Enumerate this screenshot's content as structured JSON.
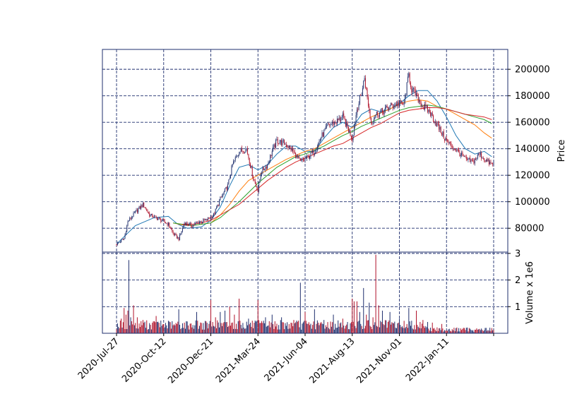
{
  "chart_data": {
    "type": "candlestick",
    "title": "",
    "panels": {
      "price": {
        "ylabel": "Price",
        "ylim": [
          62000,
          215000
        ],
        "ticks": [
          80000,
          100000,
          120000,
          140000,
          160000,
          180000,
          200000
        ],
        "tick_labels": [
          "80000",
          "100000",
          "120000",
          "140000",
          "160000",
          "180000",
          "200000"
        ]
      },
      "volume": {
        "ylabel": "Volume x 1e6",
        "ylim": [
          0,
          3.05
        ],
        "ticks": [
          1,
          2,
          3
        ],
        "tick_labels": [
          "1",
          "2",
          "3"
        ]
      }
    },
    "xlim": [
      -15,
      415
    ],
    "xticks": [
      0,
      50,
      100,
      150,
      200,
      250,
      300,
      350,
      400
    ],
    "xtick_labels": [
      "2020-Jul-27",
      "2020-Oct-12",
      "2020-Dec-21",
      "2021-Mar-24",
      "2021-Jun-04",
      "2021-Aug-13",
      "2021-Nov-01",
      "2022-Jan-11",
      ""
    ],
    "grid": true,
    "grid_style": "dashed",
    "candle_colors": {
      "up": "#1f2f6e",
      "down": "#b0122a"
    },
    "volume_colors": {
      "up": "#1f2f6e",
      "down": "#b0122a"
    },
    "close_series": {
      "start_index": 0,
      "end_index": 400,
      "points": [
        [
          0,
          68000
        ],
        [
          8,
          72000
        ],
        [
          12,
          85000
        ],
        [
          20,
          92000
        ],
        [
          28,
          98000
        ],
        [
          35,
          90000
        ],
        [
          45,
          87000
        ],
        [
          55,
          83000
        ],
        [
          60,
          76000
        ],
        [
          66,
          72000
        ],
        [
          72,
          84000
        ],
        [
          80,
          82000
        ],
        [
          88,
          85000
        ],
        [
          95,
          86000
        ],
        [
          103,
          90000
        ],
        [
          110,
          102000
        ],
        [
          118,
          112000
        ],
        [
          123,
          128000
        ],
        [
          130,
          138000
        ],
        [
          138,
          140000
        ],
        [
          145,
          118000
        ],
        [
          150,
          108000
        ],
        [
          153,
          122000
        ],
        [
          160,
          128000
        ],
        [
          165,
          138000
        ],
        [
          170,
          146000
        ],
        [
          178,
          144000
        ],
        [
          185,
          140000
        ],
        [
          190,
          135000
        ],
        [
          195,
          130000
        ],
        [
          200,
          132000
        ],
        [
          210,
          138000
        ],
        [
          218,
          150000
        ],
        [
          225,
          158000
        ],
        [
          232,
          160000
        ],
        [
          240,
          164000
        ],
        [
          250,
          148000
        ],
        [
          255,
          170000
        ],
        [
          260,
          182000
        ],
        [
          263,
          194000
        ],
        [
          266,
          178000
        ],
        [
          270,
          160000
        ],
        [
          275,
          166000
        ],
        [
          282,
          168000
        ],
        [
          290,
          172000
        ],
        [
          298,
          174000
        ],
        [
          305,
          174000
        ],
        [
          310,
          196000
        ],
        [
          313,
          185000
        ],
        [
          318,
          180000
        ],
        [
          325,
          172000
        ],
        [
          332,
          168000
        ],
        [
          340,
          158000
        ],
        [
          348,
          148000
        ],
        [
          355,
          142000
        ],
        [
          362,
          138000
        ],
        [
          370,
          132000
        ],
        [
          378,
          130000
        ],
        [
          385,
          136000
        ],
        [
          392,
          131000
        ],
        [
          398,
          128000
        ],
        [
          400,
          129000
        ]
      ]
    },
    "moving_averages": [
      {
        "color": "#1f77b4",
        "points": [
          [
            0,
            68000
          ],
          [
            20,
            82000
          ],
          [
            40,
            88000
          ],
          [
            55,
            89000
          ],
          [
            65,
            83000
          ],
          [
            75,
            80000
          ],
          [
            90,
            81000
          ],
          [
            100,
            86000
          ],
          [
            110,
            96000
          ],
          [
            120,
            112000
          ],
          [
            130,
            126000
          ],
          [
            140,
            128000
          ],
          [
            150,
            124000
          ],
          [
            160,
            128000
          ],
          [
            170,
            136000
          ],
          [
            180,
            142000
          ],
          [
            190,
            142000
          ],
          [
            200,
            138000
          ],
          [
            210,
            138000
          ],
          [
            220,
            148000
          ],
          [
            230,
            156000
          ],
          [
            240,
            160000
          ],
          [
            250,
            156000
          ],
          [
            260,
            166000
          ],
          [
            270,
            170000
          ],
          [
            280,
            168000
          ],
          [
            290,
            170000
          ],
          [
            300,
            174000
          ],
          [
            310,
            180000
          ],
          [
            320,
            184000
          ],
          [
            330,
            184000
          ],
          [
            340,
            176000
          ],
          [
            350,
            164000
          ],
          [
            360,
            150000
          ],
          [
            370,
            140000
          ],
          [
            380,
            136000
          ],
          [
            390,
            138000
          ],
          [
            398,
            134000
          ]
        ]
      },
      {
        "color": "#ff7f0e",
        "points": [
          [
            60,
            84000
          ],
          [
            70,
            82500
          ],
          [
            80,
            82000
          ],
          [
            90,
            83000
          ],
          [
            100,
            84000
          ],
          [
            110,
            90000
          ],
          [
            120,
            98000
          ],
          [
            130,
            108000
          ],
          [
            140,
            116000
          ],
          [
            150,
            120000
          ],
          [
            160,
            124000
          ],
          [
            170,
            128000
          ],
          [
            180,
            132000
          ],
          [
            190,
            135000
          ],
          [
            200,
            138000
          ],
          [
            210,
            140000
          ],
          [
            220,
            144000
          ],
          [
            230,
            148000
          ],
          [
            240,
            152000
          ],
          [
            250,
            156000
          ],
          [
            260,
            160000
          ],
          [
            270,
            164000
          ],
          [
            280,
            167000
          ],
          [
            290,
            170000
          ],
          [
            300,
            174000
          ],
          [
            310,
            176000
          ],
          [
            320,
            177000
          ],
          [
            330,
            176000
          ],
          [
            340,
            172000
          ],
          [
            350,
            170000
          ],
          [
            360,
            166000
          ],
          [
            370,
            162000
          ],
          [
            380,
            158000
          ],
          [
            390,
            152000
          ],
          [
            398,
            148000
          ]
        ]
      },
      {
        "color": "#2ca02c",
        "points": [
          [
            60,
            84000
          ],
          [
            70,
            83000
          ],
          [
            80,
            82000
          ],
          [
            90,
            83000
          ],
          [
            100,
            84000
          ],
          [
            110,
            88000
          ],
          [
            120,
            94000
          ],
          [
            130,
            100000
          ],
          [
            140,
            107000
          ],
          [
            150,
            114000
          ],
          [
            160,
            120000
          ],
          [
            170,
            126000
          ],
          [
            180,
            130000
          ],
          [
            190,
            134000
          ],
          [
            200,
            136000
          ],
          [
            210,
            139000
          ],
          [
            220,
            142000
          ],
          [
            230,
            146000
          ],
          [
            240,
            150000
          ],
          [
            250,
            153000
          ],
          [
            260,
            157000
          ],
          [
            270,
            160000
          ],
          [
            280,
            163000
          ],
          [
            290,
            166000
          ],
          [
            300,
            169000
          ],
          [
            310,
            171000
          ],
          [
            320,
            172000
          ],
          [
            330,
            173000
          ],
          [
            340,
            172000
          ],
          [
            350,
            170000
          ],
          [
            360,
            168000
          ],
          [
            370,
            166000
          ],
          [
            380,
            164000
          ],
          [
            390,
            162000
          ],
          [
            398,
            159000
          ]
        ]
      },
      {
        "color": "#d62728",
        "points": [
          [
            70,
            83000
          ],
          [
            80,
            83000
          ],
          [
            90,
            84000
          ],
          [
            100,
            86000
          ],
          [
            110,
            90000
          ],
          [
            120,
            94000
          ],
          [
            130,
            98000
          ],
          [
            140,
            104000
          ],
          [
            150,
            110000
          ],
          [
            160,
            116000
          ],
          [
            170,
            121000
          ],
          [
            180,
            126000
          ],
          [
            190,
            130000
          ],
          [
            200,
            133000
          ],
          [
            210,
            136000
          ],
          [
            220,
            139000
          ],
          [
            230,
            142000
          ],
          [
            240,
            144000
          ],
          [
            250,
            148000
          ],
          [
            260,
            152000
          ],
          [
            270,
            156000
          ],
          [
            280,
            159000
          ],
          [
            290,
            163000
          ],
          [
            300,
            167000
          ],
          [
            310,
            169000
          ],
          [
            320,
            170000
          ],
          [
            330,
            171000
          ],
          [
            340,
            171000
          ],
          [
            350,
            170000
          ],
          [
            360,
            168000
          ],
          [
            370,
            166000
          ],
          [
            380,
            165000
          ],
          [
            390,
            164000
          ],
          [
            398,
            162000
          ]
        ]
      }
    ],
    "volume_series": {
      "base_level_millions": 0.3,
      "spikes": [
        [
          5,
          0.55
        ],
        [
          8,
          0.95
        ],
        [
          10,
          0.7
        ],
        [
          12,
          0.85
        ],
        [
          13,
          2.75
        ],
        [
          15,
          0.6
        ],
        [
          18,
          1.05
        ],
        [
          22,
          0.6
        ],
        [
          28,
          0.5
        ],
        [
          42,
          0.65
        ],
        [
          60,
          0.3
        ],
        [
          66,
          0.9
        ],
        [
          72,
          0.4
        ],
        [
          85,
          0.8
        ],
        [
          95,
          0.45
        ],
        [
          100,
          1.25
        ],
        [
          105,
          0.6
        ],
        [
          110,
          0.8
        ],
        [
          115,
          0.85
        ],
        [
          120,
          1.0
        ],
        [
          125,
          0.7
        ],
        [
          130,
          1.3
        ],
        [
          140,
          0.55
        ],
        [
          150,
          1.25
        ],
        [
          158,
          0.6
        ],
        [
          165,
          0.7
        ],
        [
          175,
          0.6
        ],
        [
          188,
          0.5
        ],
        [
          195,
          1.9
        ],
        [
          200,
          0.8
        ],
        [
          210,
          0.9
        ],
        [
          220,
          0.5
        ],
        [
          230,
          0.7
        ],
        [
          240,
          0.55
        ],
        [
          250,
          1.3
        ],
        [
          252,
          1.2
        ],
        [
          255,
          1.2
        ],
        [
          258,
          0.8
        ],
        [
          262,
          1.7
        ],
        [
          265,
          0.7
        ],
        [
          268,
          1.15
        ],
        [
          272,
          0.6
        ],
        [
          275,
          2.95
        ],
        [
          278,
          1.05
        ],
        [
          282,
          0.85
        ],
        [
          290,
          0.8
        ],
        [
          300,
          0.55
        ],
        [
          310,
          0.95
        ],
        [
          318,
          0.85
        ],
        [
          325,
          0.5
        ],
        [
          335,
          0.4
        ],
        [
          345,
          0.35
        ]
      ]
    }
  }
}
